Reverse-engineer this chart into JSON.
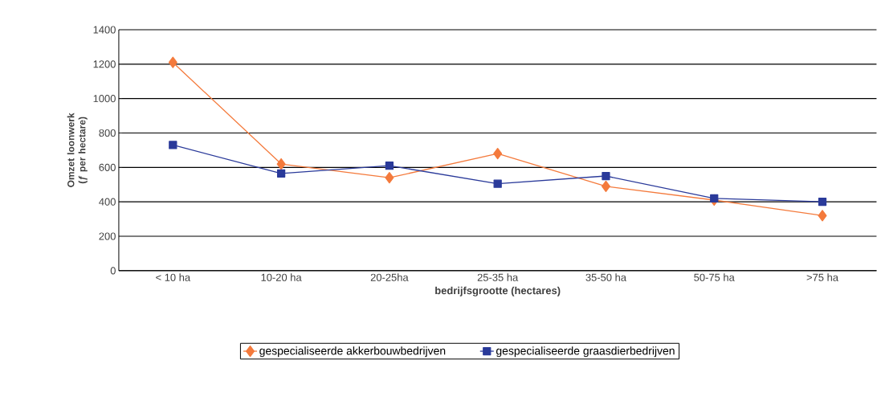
{
  "chart_data": {
    "type": "line",
    "xlabel": "bedrijfsgrootte (hectares)",
    "ylabel": "Omzet loonwerk (ƒ per hectare)",
    "categories": [
      "< 10 ha",
      "10-20 ha",
      "20-25ha",
      "25-35 ha",
      "35-50 ha",
      "50-75 ha",
      ">75 ha"
    ],
    "series": [
      {
        "name": "gespecialiseerde akkerbouwbedrijven",
        "color": "#f47a3c",
        "marker": "diamond",
        "values": [
          1210,
          620,
          540,
          680,
          490,
          410,
          320
        ]
      },
      {
        "name": "gespecialiseerde graasdierbedrijven",
        "color": "#2a3a9a",
        "marker": "square",
        "values": [
          730,
          565,
          610,
          505,
          550,
          420,
          400
        ]
      }
    ],
    "ylim": [
      0,
      1400
    ],
    "yticks": [
      0,
      200,
      400,
      600,
      800,
      1000,
      1200,
      1400
    ],
    "grid": "y",
    "legend": "bottom",
    "line_style": "solid"
  }
}
